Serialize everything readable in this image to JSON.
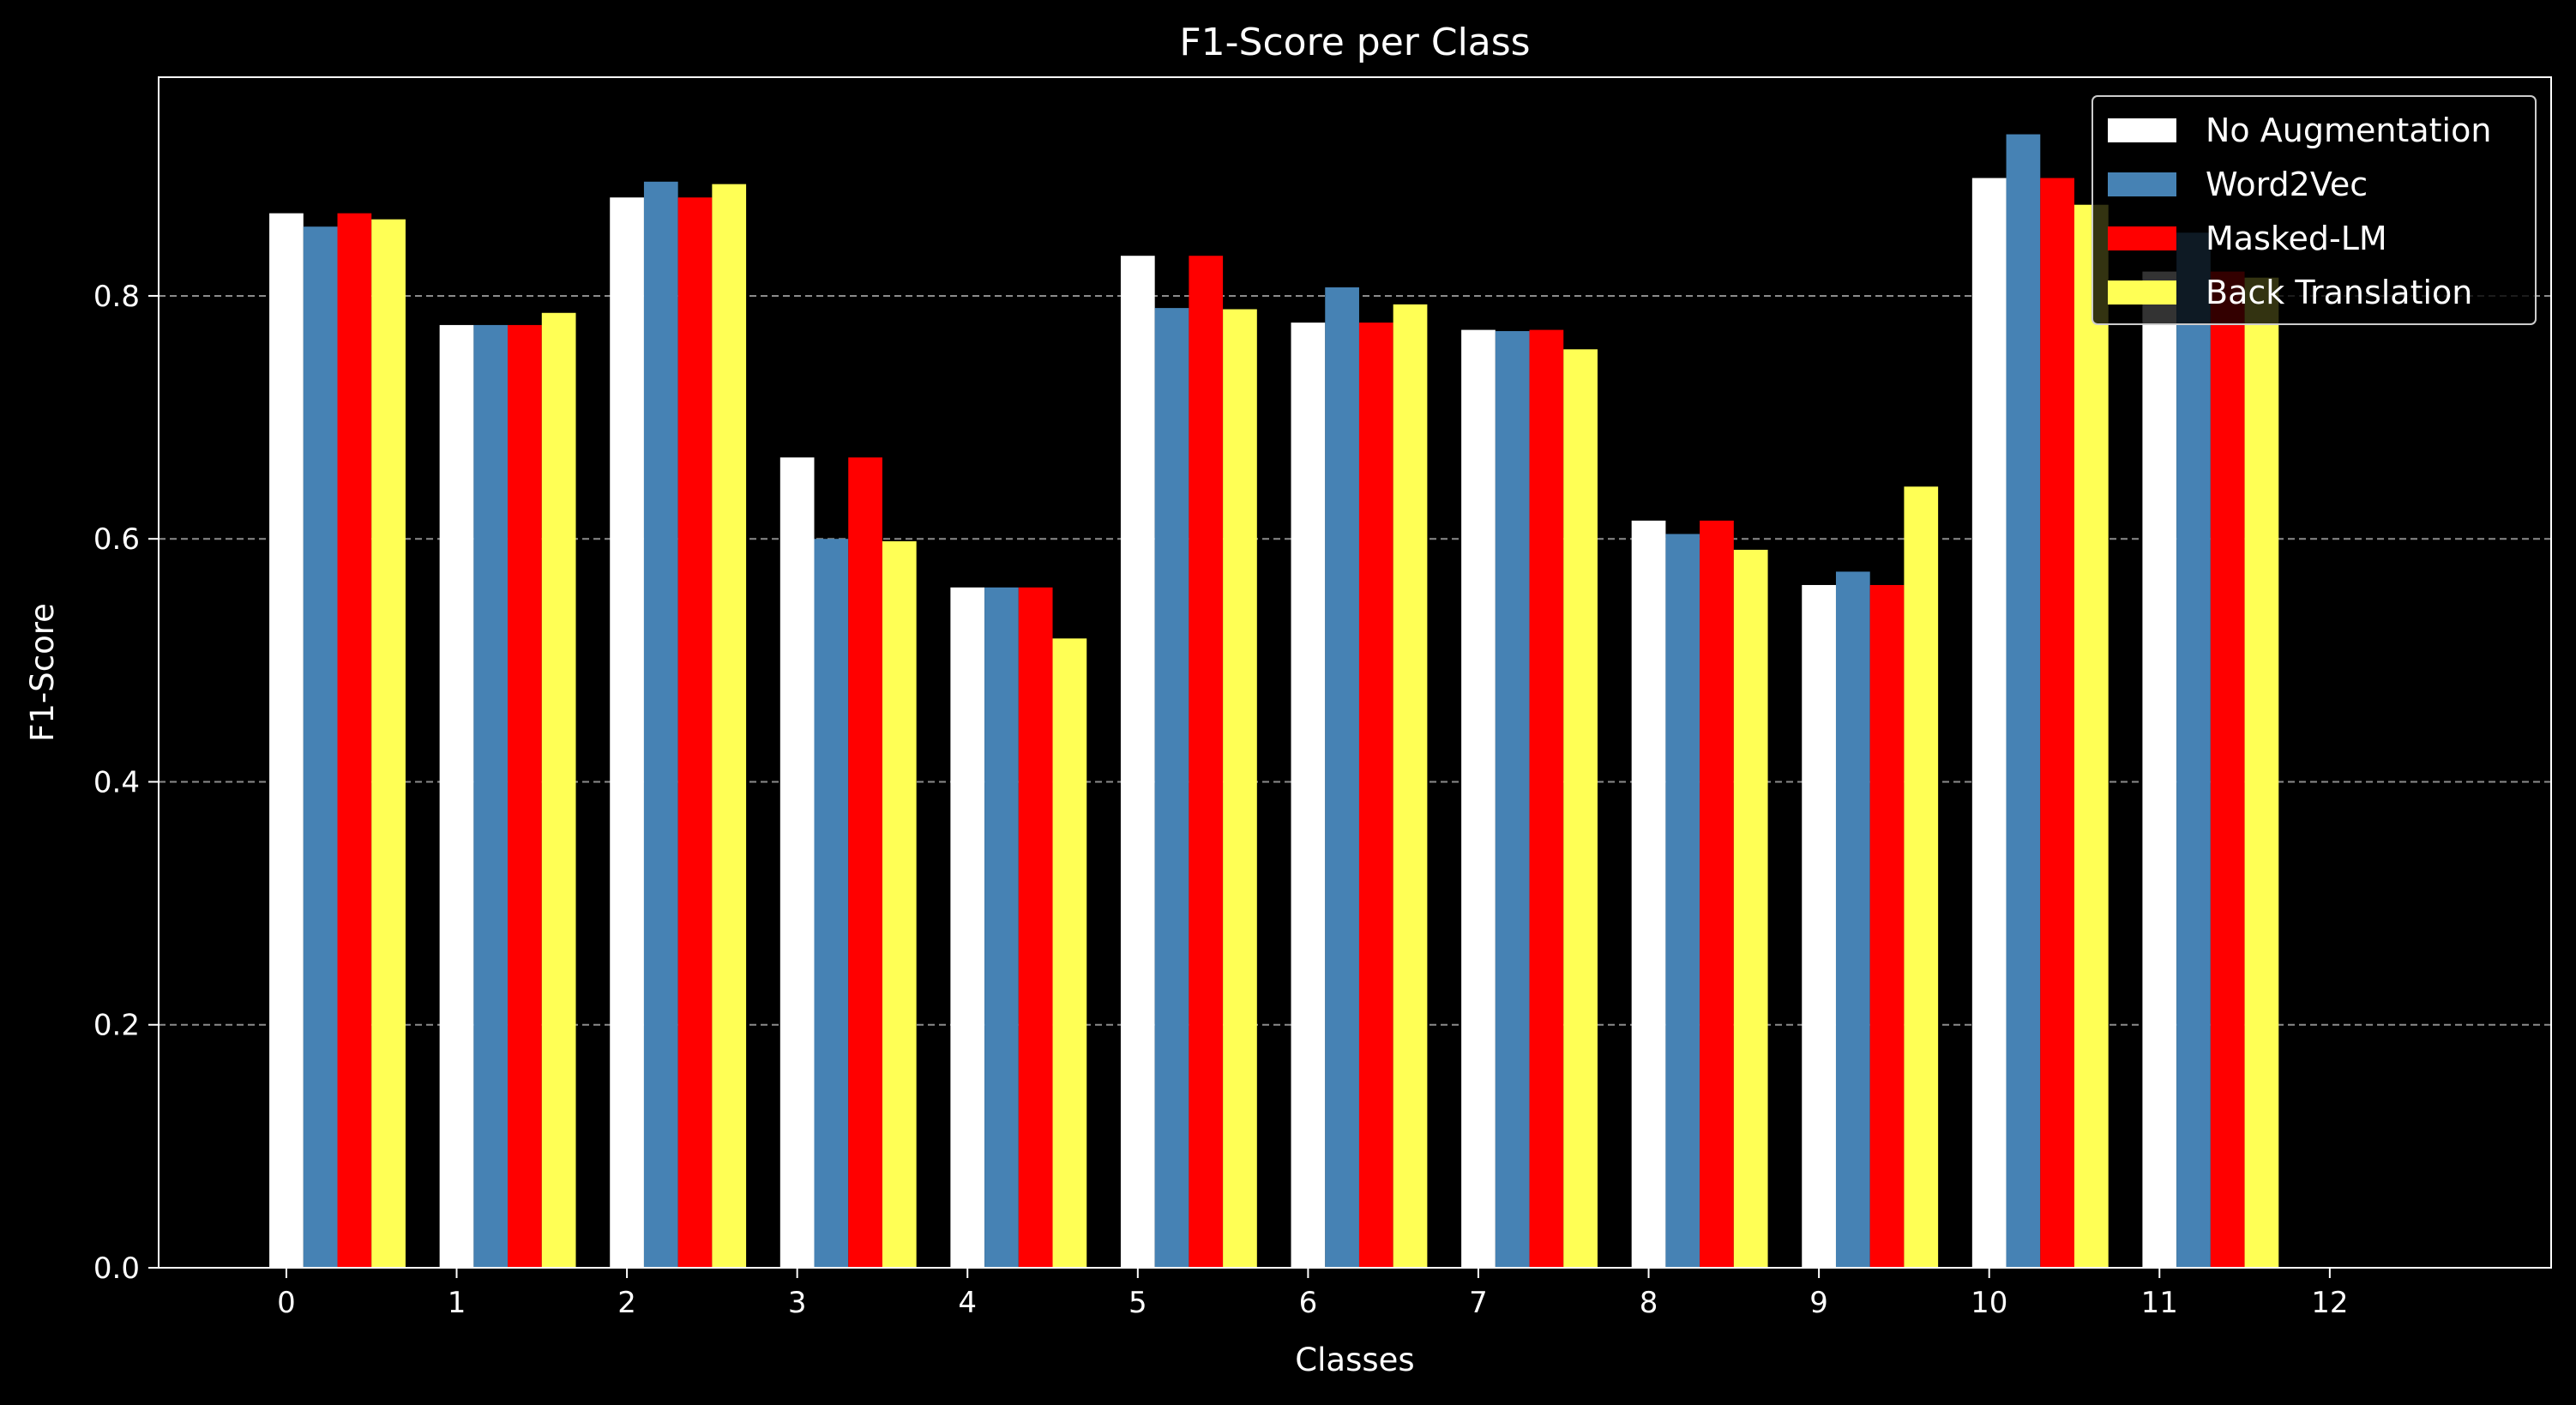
{
  "chart_data": {
    "type": "bar",
    "title": "F1-Score per Class",
    "xlabel": "Classes",
    "ylabel": "F1-Score",
    "x_ticks": [
      "0",
      "1",
      "2",
      "3",
      "4",
      "5",
      "6",
      "7",
      "8",
      "9",
      "10",
      "11",
      "12"
    ],
    "categories": [
      "0",
      "1",
      "2",
      "3",
      "4",
      "5",
      "6",
      "7",
      "8",
      "9",
      "10",
      "11"
    ],
    "ylim": [
      0,
      0.98
    ],
    "yticks": [
      0.0,
      0.2,
      0.4,
      0.6,
      0.8
    ],
    "xlim": [
      -0.75,
      13.3
    ],
    "grid": "y-dashed",
    "legend_position": "top-right",
    "series": [
      {
        "name": "No Augmentation",
        "color": "#ffffff",
        "values": [
          0.868,
          0.776,
          0.881,
          0.667,
          0.56,
          0.833,
          0.778,
          0.772,
          0.615,
          0.562,
          0.897,
          0.82
        ]
      },
      {
        "name": "Word2Vec",
        "color": "#4682b4",
        "values": [
          0.857,
          0.776,
          0.894,
          0.6,
          0.56,
          0.79,
          0.807,
          0.771,
          0.604,
          0.573,
          0.933,
          0.852
        ]
      },
      {
        "name": "Masked-LM",
        "color": "#ff0000",
        "values": [
          0.868,
          0.776,
          0.881,
          0.667,
          0.56,
          0.833,
          0.778,
          0.772,
          0.615,
          0.562,
          0.897,
          0.82
        ]
      },
      {
        "name": "Back Translation",
        "color": "#ffff55",
        "values": [
          0.863,
          0.786,
          0.892,
          0.598,
          0.518,
          0.789,
          0.793,
          0.756,
          0.591,
          0.643,
          0.875,
          0.815
        ]
      }
    ]
  }
}
